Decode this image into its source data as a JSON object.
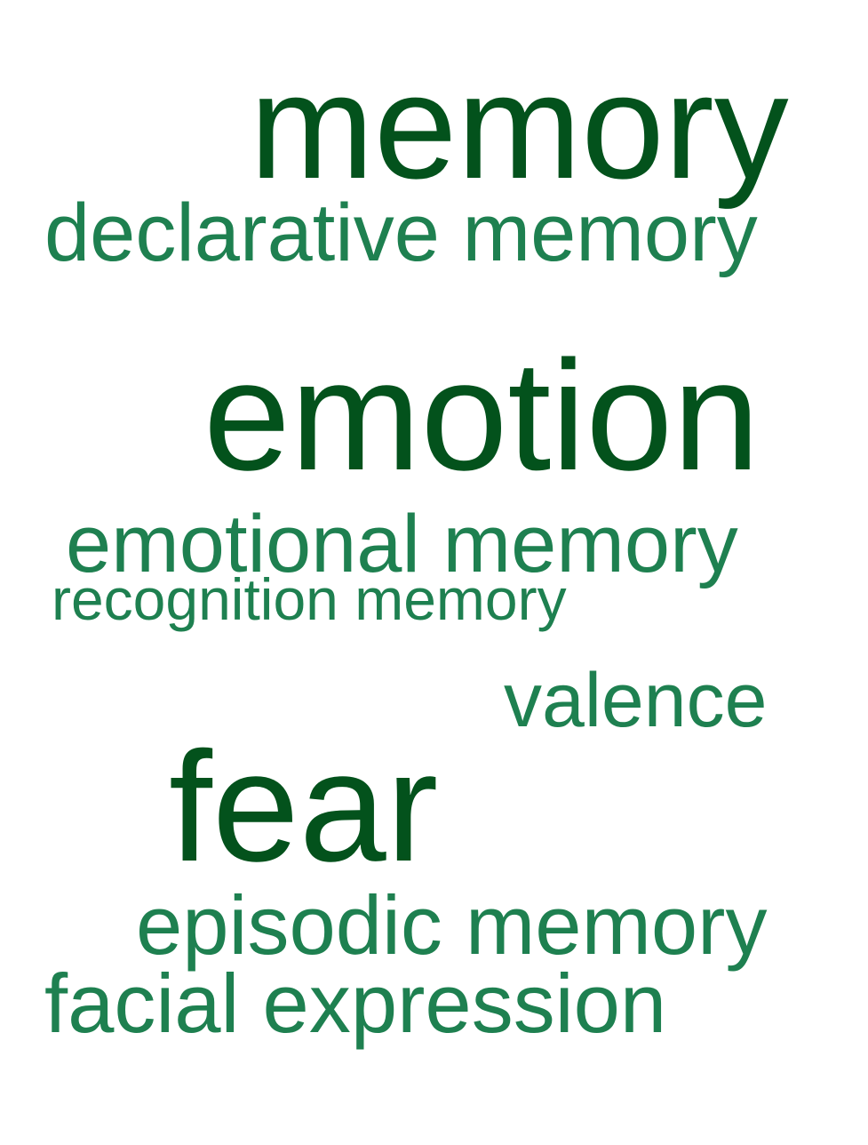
{
  "word_cloud": {
    "colors": {
      "primary": "#03521c",
      "secondary": "#1e8050",
      "background": "#ffffff"
    },
    "words": {
      "memory": "memory",
      "declarative_memory": "declarative memory",
      "emotion": "emotion",
      "emotional_memory": "emotional memory",
      "recognition_memory": "recognition memory",
      "valence": "valence",
      "fear": "fear",
      "episodic_memory": "episodic memory",
      "facial_expression": "facial expression"
    }
  }
}
